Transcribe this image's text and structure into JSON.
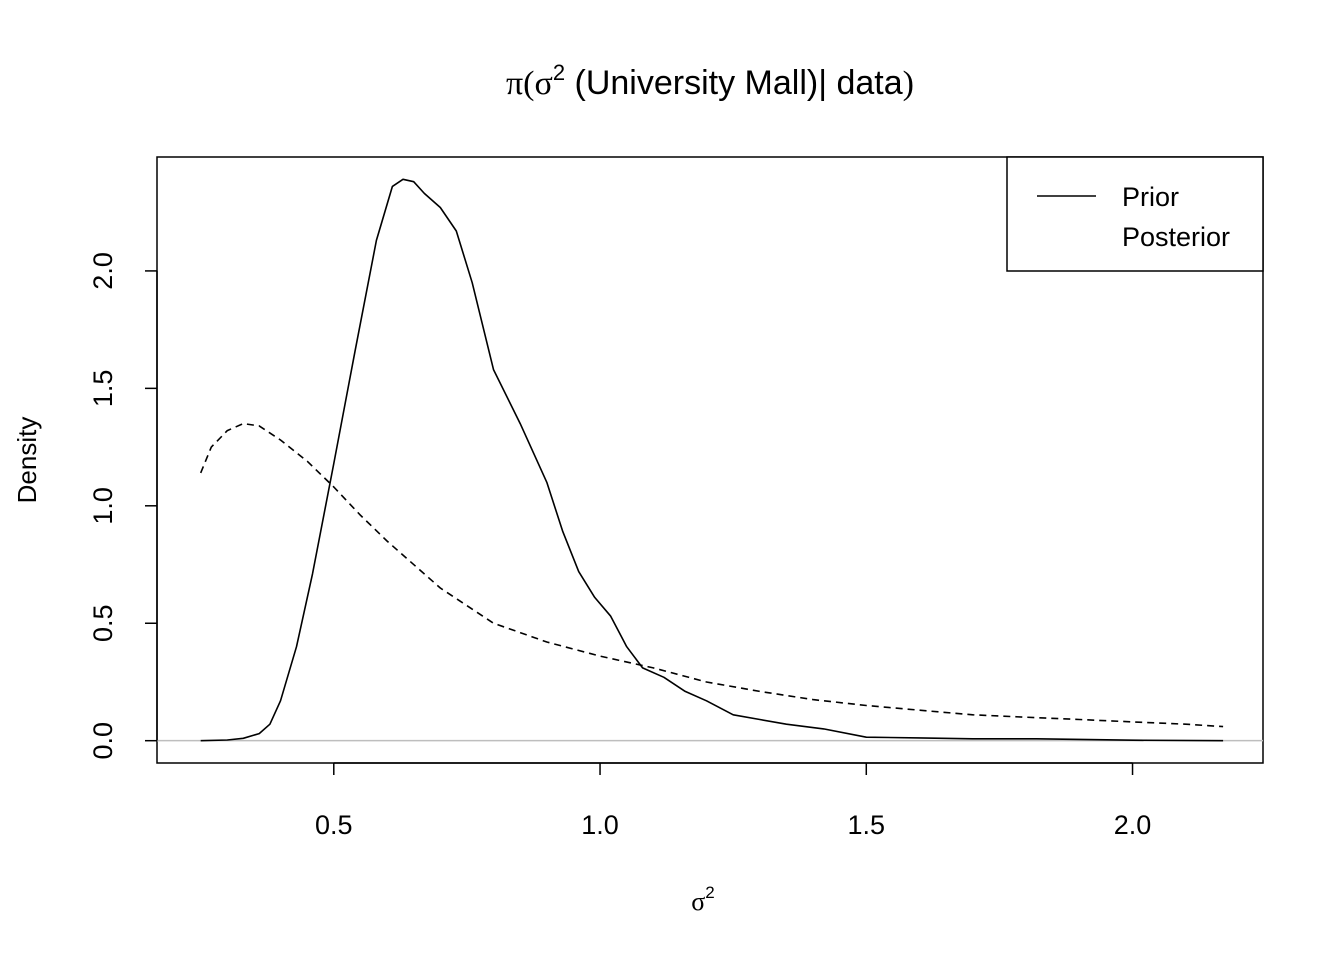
{
  "chart_data": {
    "type": "line",
    "title": {
      "prefix": "π(σ",
      "superscript": "2",
      "middle": " (University Mall)| data",
      "suffix": ")"
    },
    "xlabel": {
      "symbol": "σ",
      "superscript": "2"
    },
    "ylabel": "Density",
    "xlim": [
      0.168,
      2.245
    ],
    "ylim": [
      -0.095,
      2.485
    ],
    "x_ticks": [
      0.5,
      1.0,
      1.5,
      2.0
    ],
    "x_tick_labels": [
      "0.5",
      "1.0",
      "1.5",
      "2.0"
    ],
    "y_ticks": [
      0.0,
      0.5,
      1.0,
      1.5,
      2.0
    ],
    "y_tick_labels": [
      "0.0",
      "0.5",
      "1.0",
      "1.5",
      "2.0"
    ],
    "reference_line": {
      "y": 0,
      "color": "#bebebe"
    },
    "legend": {
      "position": "top-right",
      "entries": [
        {
          "label": "Prior",
          "line_style": "solid"
        },
        {
          "label": "Posterior",
          "line_style": "none"
        }
      ]
    },
    "series": [
      {
        "style": "solid",
        "x": [
          0.25,
          0.3,
          0.33,
          0.36,
          0.38,
          0.4,
          0.43,
          0.46,
          0.5,
          0.54,
          0.58,
          0.61,
          0.63,
          0.65,
          0.67,
          0.7,
          0.73,
          0.76,
          0.8,
          0.85,
          0.9,
          0.93,
          0.96,
          0.99,
          1.02,
          1.05,
          1.08,
          1.12,
          1.16,
          1.2,
          1.25,
          1.3,
          1.35,
          1.42,
          1.5,
          1.6,
          1.7,
          1.82,
          2.0,
          2.17
        ],
        "y": [
          0.0,
          0.003,
          0.01,
          0.03,
          0.07,
          0.17,
          0.4,
          0.71,
          1.18,
          1.66,
          2.13,
          2.36,
          2.39,
          2.38,
          2.33,
          2.27,
          2.17,
          1.95,
          1.58,
          1.35,
          1.1,
          0.89,
          0.72,
          0.61,
          0.53,
          0.4,
          0.31,
          0.27,
          0.21,
          0.17,
          0.11,
          0.09,
          0.07,
          0.05,
          0.015,
          0.012,
          0.008,
          0.008,
          0.002,
          0.0
        ]
      },
      {
        "style": "dashed",
        "x": [
          0.25,
          0.27,
          0.3,
          0.33,
          0.36,
          0.4,
          0.45,
          0.5,
          0.55,
          0.6,
          0.7,
          0.8,
          0.9,
          1.0,
          1.1,
          1.2,
          1.3,
          1.4,
          1.5,
          1.6,
          1.7,
          1.8,
          1.9,
          2.0,
          2.1,
          2.17
        ],
        "y": [
          1.14,
          1.25,
          1.32,
          1.35,
          1.34,
          1.28,
          1.19,
          1.08,
          0.96,
          0.85,
          0.65,
          0.5,
          0.42,
          0.36,
          0.31,
          0.25,
          0.21,
          0.175,
          0.15,
          0.13,
          0.11,
          0.1,
          0.09,
          0.08,
          0.07,
          0.06
        ]
      }
    ]
  }
}
